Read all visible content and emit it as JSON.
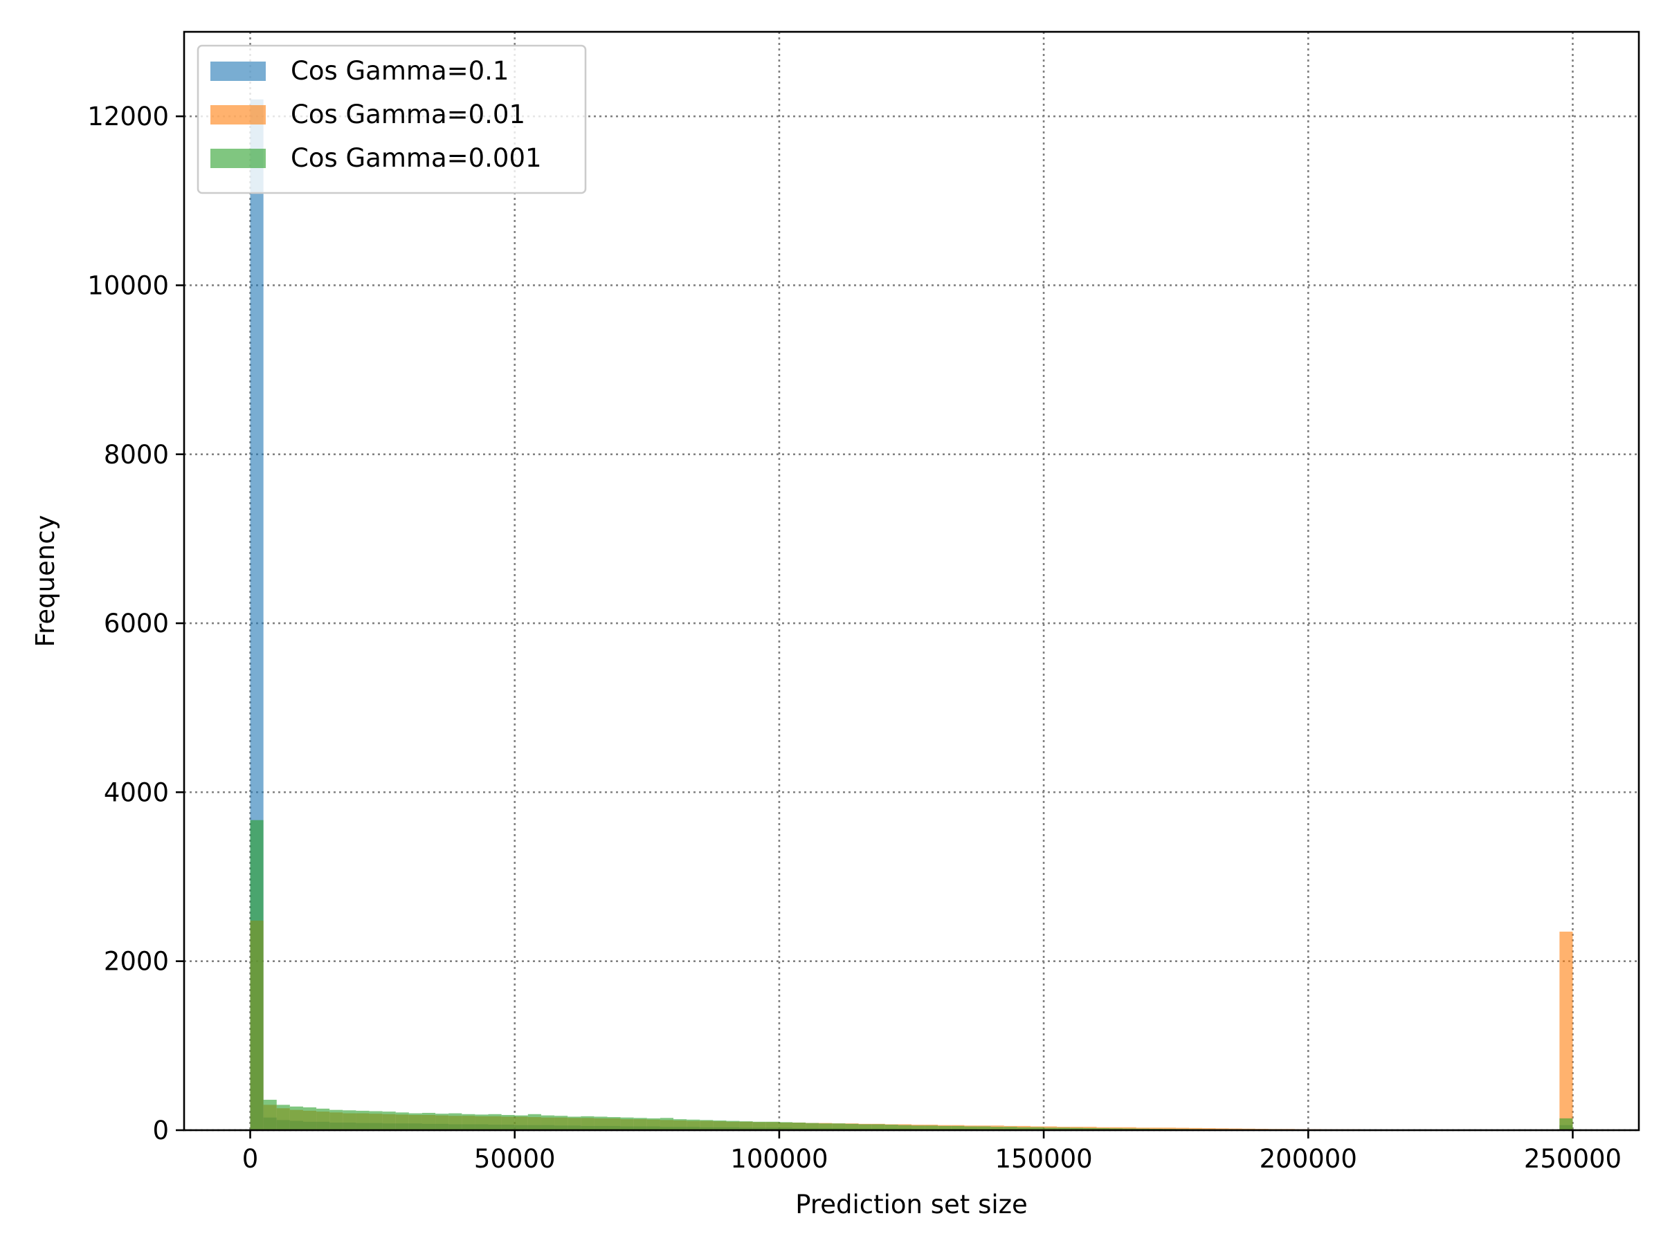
{
  "chart_data": {
    "type": "bar",
    "subtype": "overlaid-histogram",
    "title": "",
    "xlabel": "Prediction set size",
    "ylabel": "Frequency",
    "xlim": [
      -12500,
      262500
    ],
    "ylim": [
      0,
      13000
    ],
    "xticks": [
      0,
      50000,
      100000,
      150000,
      200000,
      250000
    ],
    "yticks": [
      0,
      2000,
      4000,
      6000,
      8000,
      10000,
      12000
    ],
    "grid": true,
    "legend_position": "upper-left",
    "bin_width": 2500,
    "bin_start": 0,
    "series": [
      {
        "name": "Cos Gamma=0.1",
        "color": "#1f77b4",
        "values": [
          12200,
          150,
          120,
          110,
          100,
          100,
          90,
          90,
          85,
          85,
          80,
          80,
          80,
          75,
          75,
          70,
          70,
          70,
          65,
          65,
          60,
          60,
          60,
          55,
          55,
          50,
          50,
          50,
          45,
          45,
          45,
          40,
          40,
          40,
          35,
          35,
          35,
          30,
          30,
          30,
          30,
          25,
          25,
          25,
          25,
          20,
          20,
          20,
          20,
          20,
          15,
          15,
          15,
          15,
          15,
          12,
          12,
          12,
          12,
          10,
          10,
          10,
          10,
          8,
          8,
          8,
          8,
          8,
          6,
          6,
          6,
          6,
          5,
          5,
          5,
          5,
          4,
          4,
          4,
          4,
          3,
          3,
          3,
          3,
          2,
          2,
          2,
          2,
          2,
          2,
          2,
          2,
          2,
          2,
          2,
          2,
          2,
          2,
          2,
          60
        ]
      },
      {
        "name": "Cos Gamma=0.01",
        "color": "#ff7f0e",
        "values": [
          2480,
          300,
          260,
          240,
          230,
          220,
          210,
          200,
          200,
          195,
          190,
          185,
          180,
          180,
          175,
          170,
          170,
          165,
          165,
          160,
          160,
          155,
          150,
          150,
          145,
          145,
          140,
          140,
          130,
          130,
          125,
          120,
          115,
          110,
          110,
          105,
          100,
          100,
          95,
          95,
          90,
          90,
          85,
          85,
          80,
          80,
          75,
          75,
          70,
          70,
          65,
          65,
          60,
          60,
          55,
          55,
          55,
          50,
          50,
          45,
          45,
          40,
          40,
          40,
          35,
          35,
          35,
          30,
          30,
          30,
          28,
          26,
          24,
          22,
          20,
          18,
          16,
          14,
          14,
          12,
          12,
          10,
          10,
          10,
          8,
          8,
          8,
          6,
          6,
          6,
          5,
          5,
          5,
          4,
          4,
          4,
          3,
          3,
          3,
          2350
        ]
      },
      {
        "name": "Cos Gamma=0.001",
        "color": "#2ca02c",
        "values": [
          3670,
          360,
          300,
          280,
          270,
          255,
          240,
          235,
          230,
          225,
          220,
          210,
          200,
          205,
          195,
          200,
          190,
          185,
          190,
          180,
          175,
          190,
          175,
          170,
          160,
          165,
          160,
          155,
          150,
          145,
          140,
          145,
          130,
          125,
          120,
          115,
          110,
          105,
          100,
          100,
          95,
          90,
          85,
          80,
          80,
          75,
          70,
          70,
          65,
          60,
          55,
          55,
          50,
          50,
          45,
          45,
          40,
          40,
          35,
          35,
          30,
          30,
          28,
          26,
          24,
          22,
          20,
          18,
          16,
          15,
          14,
          13,
          12,
          11,
          10,
          10,
          9,
          9,
          8,
          8,
          7,
          7,
          6,
          6,
          5,
          5,
          5,
          4,
          4,
          4,
          3,
          3,
          3,
          3,
          2,
          2,
          2,
          2,
          2,
          140
        ]
      }
    ]
  }
}
